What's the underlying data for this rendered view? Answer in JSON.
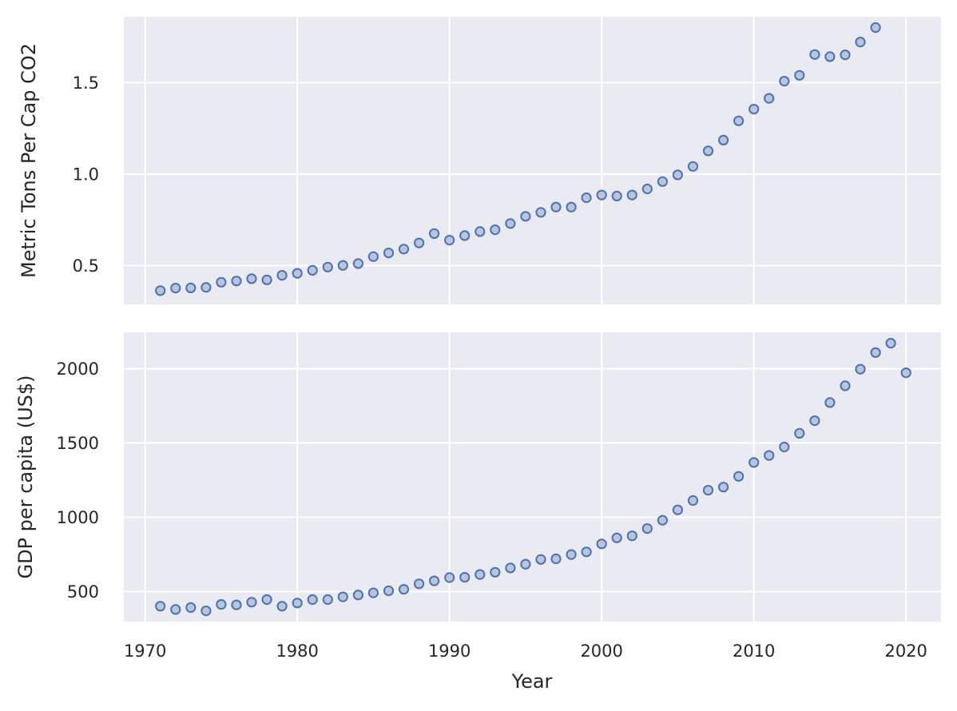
{
  "figure": {
    "background": "#ffffff",
    "text_color": "#262626"
  },
  "chart_data": [
    {
      "type": "scatter",
      "title": "",
      "xlabel": "",
      "ylabel": "Metric Tons Per Cap CO2",
      "x": [
        1971,
        1972,
        1973,
        1974,
        1975,
        1976,
        1977,
        1978,
        1979,
        1980,
        1981,
        1982,
        1983,
        1984,
        1985,
        1986,
        1987,
        1988,
        1989,
        1990,
        1991,
        1992,
        1993,
        1994,
        1995,
        1996,
        1997,
        1998,
        1999,
        2000,
        2001,
        2002,
        2003,
        2004,
        2005,
        2006,
        2007,
        2008,
        2009,
        2010,
        2011,
        2012,
        2013,
        2014,
        2015,
        2016,
        2017,
        2018
      ],
      "y": [
        0.363,
        0.377,
        0.378,
        0.381,
        0.409,
        0.416,
        0.428,
        0.422,
        0.447,
        0.458,
        0.474,
        0.492,
        0.501,
        0.511,
        0.549,
        0.569,
        0.59,
        0.624,
        0.675,
        0.639,
        0.664,
        0.686,
        0.696,
        0.73,
        0.769,
        0.791,
        0.82,
        0.82,
        0.871,
        0.886,
        0.88,
        0.886,
        0.919,
        0.959,
        0.996,
        1.042,
        1.127,
        1.186,
        1.291,
        1.355,
        1.414,
        1.508,
        1.54,
        1.654,
        1.642,
        1.652,
        1.722,
        1.801
      ],
      "xlim": [
        1968.6,
        2022.3
      ],
      "ylim": [
        0.288,
        1.86
      ],
      "xticks": [
        1970,
        1980,
        1990,
        2000,
        2010,
        2020
      ],
      "xtick_labels": [],
      "yticks": [
        0.5,
        1.0,
        1.5
      ],
      "ytick_labels": [
        "0.5",
        "1.0",
        "1.5"
      ],
      "grid": true,
      "legend": false,
      "colors": {
        "plot_bg": "#eaeaf2",
        "grid": "#ffffff",
        "marker_edge": "#4c72b0",
        "marker_fill": "#bac4db"
      }
    },
    {
      "type": "scatter",
      "title": "",
      "xlabel": "Year",
      "ylabel": "GDP per capita (US$)",
      "x": [
        1971,
        1972,
        1973,
        1974,
        1975,
        1976,
        1977,
        1978,
        1979,
        1980,
        1981,
        1982,
        1983,
        1984,
        1985,
        1986,
        1987,
        1988,
        1989,
        1990,
        1991,
        1992,
        1993,
        1994,
        1995,
        1996,
        1997,
        1998,
        1999,
        2000,
        2001,
        2002,
        2003,
        2004,
        2005,
        2006,
        2007,
        2008,
        2009,
        2010,
        2011,
        2012,
        2013,
        2014,
        2015,
        2016,
        2017,
        2018,
        2019,
        2020
      ],
      "y": [
        401,
        379,
        392,
        370,
        413,
        410,
        428,
        446,
        401,
        423,
        446,
        446,
        464,
        477,
        491,
        505,
        515,
        552,
        572,
        594,
        596,
        615,
        630,
        659,
        684,
        716,
        720,
        749,
        767,
        821,
        861,
        875,
        924,
        980,
        1050,
        1113,
        1182,
        1203,
        1275,
        1369,
        1416,
        1473,
        1565,
        1650,
        1772,
        1885,
        1997,
        2109,
        2172,
        1973
      ],
      "xlim": [
        1968.6,
        2022.3
      ],
      "ylim": [
        298,
        2245
      ],
      "xticks": [
        1970,
        1980,
        1990,
        2000,
        2010,
        2020
      ],
      "xtick_labels": [
        "1970",
        "1980",
        "1990",
        "2000",
        "2010",
        "2020"
      ],
      "yticks": [
        500,
        1000,
        1500,
        2000
      ],
      "ytick_labels": [
        "500",
        "1000",
        "1500",
        "2000"
      ],
      "grid": true,
      "legend": false,
      "colors": {
        "plot_bg": "#eaeaf2",
        "grid": "#ffffff",
        "marker_edge": "#4c72b0",
        "marker_fill": "#bac4db"
      }
    }
  ]
}
